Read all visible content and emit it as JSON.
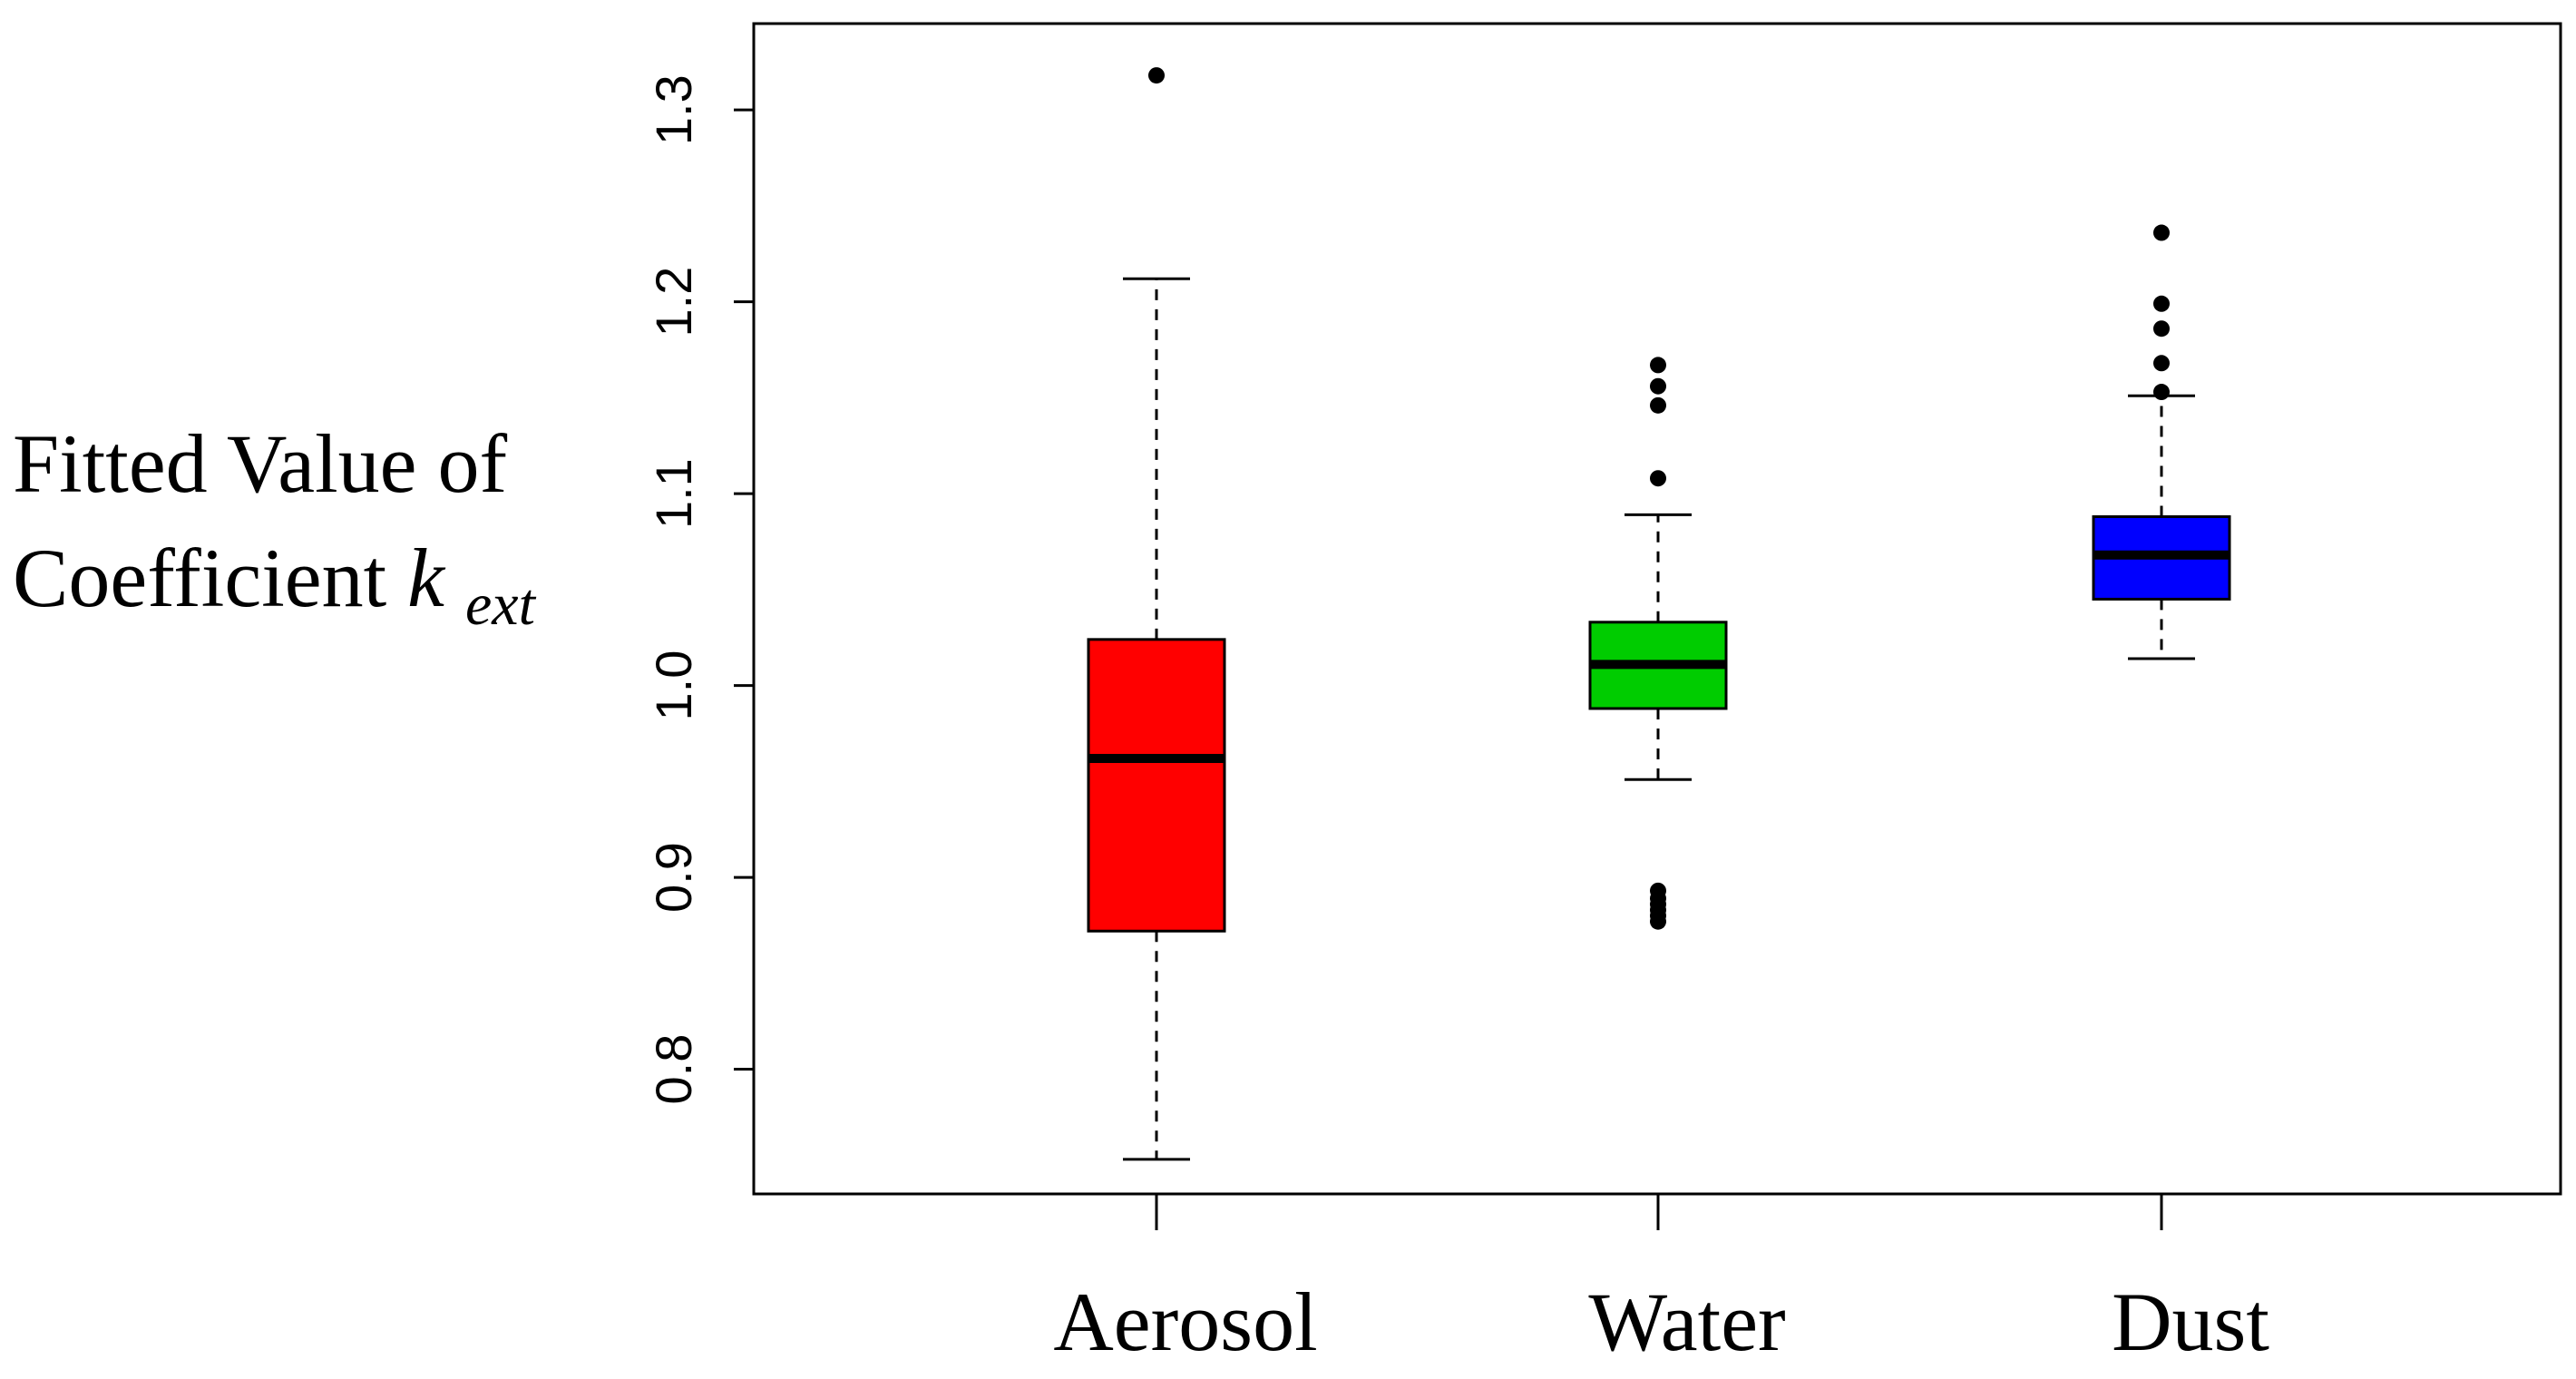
{
  "chart_data": {
    "type": "boxplot",
    "title": "",
    "ylabel": {
      "line1": "Fitted Value of",
      "line2_prefix": "Coefficient ",
      "line2_symbol": "k",
      "line2_subscript": "ext"
    },
    "xlabel": "",
    "ylim": [
      0.735,
      1.345
    ],
    "yticks": [
      0.8,
      0.9,
      1.0,
      1.1,
      1.2,
      1.3
    ],
    "ytick_labels": [
      "0.8",
      "0.9",
      "1.0",
      "1.1",
      "1.2",
      "1.3"
    ],
    "categories": [
      "Aerosol",
      "Water",
      "Dust"
    ],
    "series": [
      {
        "name": "Aerosol",
        "color": "#ff0000",
        "whisker_low": 0.753,
        "q1": 0.872,
        "median": 0.962,
        "q3": 1.024,
        "whisker_high": 1.212,
        "outliers": [
          1.318
        ]
      },
      {
        "name": "Water",
        "color": "#00cc00",
        "whisker_low": 0.951,
        "q1": 0.988,
        "median": 1.011,
        "q3": 1.033,
        "whisker_high": 1.089,
        "outliers": [
          1.167,
          1.156,
          1.146,
          1.108,
          0.893,
          0.889,
          0.886,
          0.883,
          0.88,
          0.877
        ]
      },
      {
        "name": "Dust",
        "color": "#0000ff",
        "whisker_low": 1.014,
        "q1": 1.045,
        "median": 1.068,
        "q3": 1.088,
        "whisker_high": 1.151,
        "outliers": [
          1.236,
          1.199,
          1.186,
          1.168,
          1.153
        ]
      }
    ]
  }
}
